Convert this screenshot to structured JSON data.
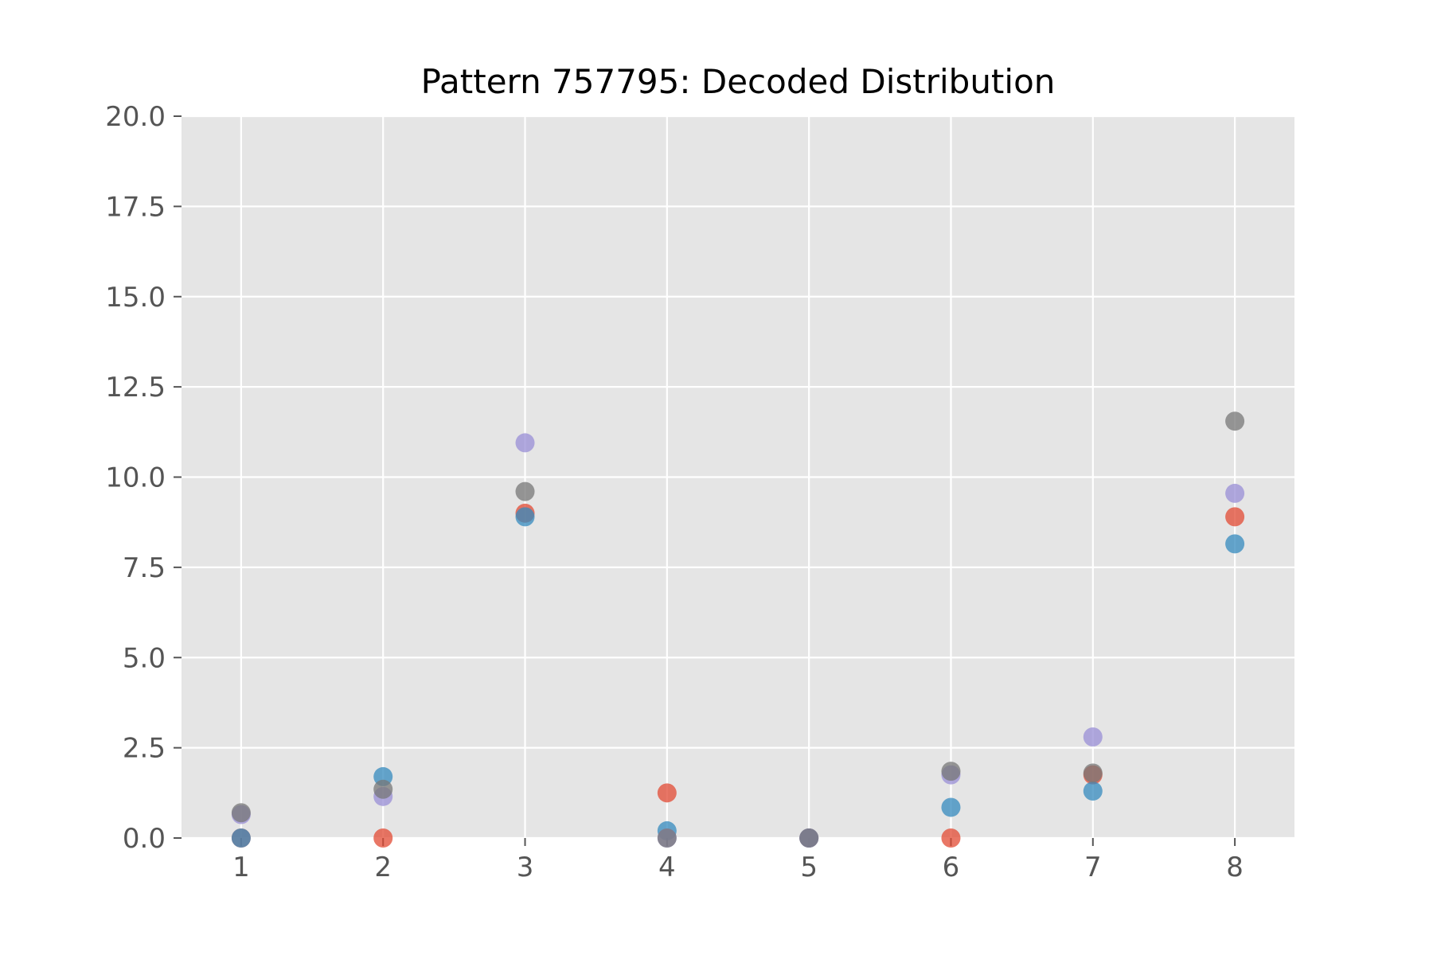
{
  "chart_data": {
    "type": "scatter",
    "title": "Pattern 757795: Decoded Distribution",
    "xlabel": "",
    "ylabel": "",
    "x": [
      1,
      2,
      3,
      4,
      5,
      6,
      7,
      8
    ],
    "xlim": [
      0.58,
      8.42
    ],
    "ylim": [
      0,
      20
    ],
    "x_ticks": [
      1,
      2,
      3,
      4,
      5,
      6,
      7,
      8
    ],
    "x_tick_labels": [
      "1",
      "2",
      "3",
      "4",
      "5",
      "6",
      "7",
      "8"
    ],
    "y_ticks": [
      0,
      2.5,
      5,
      7.5,
      10,
      12.5,
      15,
      17.5,
      20
    ],
    "y_tick_labels": [
      "0.0",
      "2.5",
      "5.0",
      "7.5",
      "10.0",
      "12.5",
      "15.0",
      "17.5",
      "20.0"
    ],
    "grid": true,
    "legend": "none",
    "series": [
      {
        "color": "#E24A33",
        "values": [
          0.0,
          0.0,
          9.0,
          1.25,
          0.0,
          0.0,
          1.75,
          8.9
        ]
      },
      {
        "color": "#348ABD",
        "values": [
          0.0,
          1.7,
          8.9,
          0.2,
          0.0,
          0.85,
          1.3,
          8.15
        ]
      },
      {
        "color": "#988ED5",
        "values": [
          0.65,
          1.15,
          10.95,
          0.0,
          0.0,
          1.75,
          2.8,
          9.55
        ]
      },
      {
        "color": "#777777",
        "values": [
          0.7,
          1.35,
          9.6,
          0.0,
          0.0,
          1.85,
          1.8,
          11.55
        ]
      }
    ]
  }
}
